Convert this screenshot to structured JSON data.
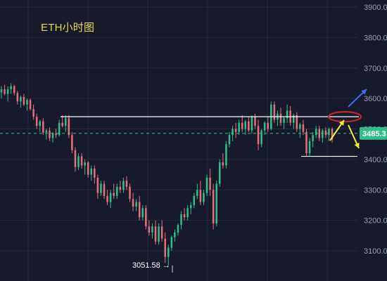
{
  "title": "ETH小时图",
  "low_label": "3051.58 →",
  "current_price_label": "3485.3",
  "colors": {
    "background": "#161a2b",
    "up": "#2fbf8a",
    "down": "#e86f7a",
    "title": "#e6d94a",
    "grid": "#262b40",
    "current_line": "#2fbf8a",
    "resistance": "#ffffff",
    "ellipse": "#c0272d",
    "arrow_up": "#3d6ee8",
    "arrow_down": "#f5ef3a"
  },
  "chart_data": {
    "type": "candlestick",
    "y_axis": {
      "ticks": [
        "3900.0",
        "3800.0",
        "3700.0",
        "3600.0",
        "3500.0",
        "3400.0",
        "3300.0",
        "3200.0",
        "3100.0"
      ],
      "ylim": [
        3030,
        3930
      ],
      "position": "right"
    },
    "grid": true,
    "current_price": 3485.3,
    "low": 3051.58,
    "levels": {
      "resistance": 3540,
      "support": 3410
    },
    "annotations": [
      "resistance line",
      "support line",
      "red ellipse at resistance",
      "blue arrow up",
      "yellow arrows (up and down)"
    ],
    "candles": [
      [
        3620,
        3640,
        3600,
        3630
      ],
      [
        3630,
        3645,
        3610,
        3615
      ],
      [
        3615,
        3640,
        3590,
        3630
      ],
      [
        3630,
        3650,
        3615,
        3640
      ],
      [
        3640,
        3645,
        3610,
        3618
      ],
      [
        3618,
        3625,
        3580,
        3590
      ],
      [
        3590,
        3610,
        3570,
        3605
      ],
      [
        3605,
        3615,
        3575,
        3580
      ],
      [
        3580,
        3600,
        3560,
        3595
      ],
      [
        3595,
        3600,
        3560,
        3565
      ],
      [
        3565,
        3580,
        3530,
        3540
      ],
      [
        3540,
        3550,
        3500,
        3510
      ],
      [
        3510,
        3530,
        3490,
        3525
      ],
      [
        3525,
        3535,
        3480,
        3488
      ],
      [
        3488,
        3500,
        3465,
        3495
      ],
      [
        3495,
        3505,
        3460,
        3470
      ],
      [
        3470,
        3490,
        3455,
        3485
      ],
      [
        3485,
        3500,
        3470,
        3480
      ],
      [
        3480,
        3530,
        3475,
        3520
      ],
      [
        3520,
        3545,
        3505,
        3510
      ],
      [
        3510,
        3545,
        3490,
        3535
      ],
      [
        3535,
        3545,
        3470,
        3480
      ],
      [
        3480,
        3490,
        3420,
        3430
      ],
      [
        3430,
        3440,
        3360,
        3375
      ],
      [
        3375,
        3420,
        3365,
        3410
      ],
      [
        3410,
        3420,
        3370,
        3380
      ],
      [
        3380,
        3400,
        3350,
        3390
      ],
      [
        3390,
        3395,
        3340,
        3350
      ],
      [
        3350,
        3380,
        3330,
        3370
      ],
      [
        3370,
        3380,
        3320,
        3340
      ],
      [
        3340,
        3350,
        3270,
        3290
      ],
      [
        3290,
        3330,
        3280,
        3320
      ],
      [
        3320,
        3330,
        3270,
        3280
      ],
      [
        3280,
        3300,
        3250,
        3260
      ],
      [
        3260,
        3300,
        3240,
        3290
      ],
      [
        3290,
        3320,
        3270,
        3280
      ],
      [
        3280,
        3320,
        3270,
        3310
      ],
      [
        3310,
        3330,
        3290,
        3300
      ],
      [
        3300,
        3340,
        3290,
        3330
      ],
      [
        3330,
        3345,
        3300,
        3310
      ],
      [
        3310,
        3320,
        3260,
        3270
      ],
      [
        3270,
        3290,
        3230,
        3245
      ],
      [
        3245,
        3270,
        3230,
        3260
      ],
      [
        3260,
        3280,
        3200,
        3210
      ],
      [
        3210,
        3250,
        3200,
        3240
      ],
      [
        3240,
        3250,
        3170,
        3180
      ],
      [
        3180,
        3200,
        3150,
        3160
      ],
      [
        3160,
        3190,
        3140,
        3180
      ],
      [
        3180,
        3200,
        3120,
        3130
      ],
      [
        3130,
        3190,
        3120,
        3180
      ],
      [
        3180,
        3200,
        3130,
        3140
      ],
      [
        3140,
        3160,
        3060,
        3080
      ],
      [
        3080,
        3120,
        3052,
        3110
      ],
      [
        3110,
        3150,
        3100,
        3145
      ],
      [
        3145,
        3170,
        3130,
        3160
      ],
      [
        3160,
        3190,
        3150,
        3185
      ],
      [
        3185,
        3230,
        3170,
        3220
      ],
      [
        3220,
        3240,
        3200,
        3210
      ],
      [
        3210,
        3250,
        3200,
        3240
      ],
      [
        3240,
        3260,
        3220,
        3250
      ],
      [
        3250,
        3290,
        3240,
        3280
      ],
      [
        3280,
        3320,
        3270,
        3300
      ],
      [
        3300,
        3330,
        3250,
        3260
      ],
      [
        3260,
        3300,
        3250,
        3290
      ],
      [
        3290,
        3350,
        3280,
        3340
      ],
      [
        3340,
        3370,
        3280,
        3300
      ],
      [
        3300,
        3320,
        3170,
        3190
      ],
      [
        3190,
        3330,
        3180,
        3320
      ],
      [
        3320,
        3400,
        3310,
        3390
      ],
      [
        3390,
        3420,
        3370,
        3380
      ],
      [
        3380,
        3460,
        3370,
        3450
      ],
      [
        3450,
        3490,
        3440,
        3480
      ],
      [
        3480,
        3510,
        3460,
        3500
      ],
      [
        3500,
        3520,
        3470,
        3490
      ],
      [
        3490,
        3530,
        3480,
        3520
      ],
      [
        3520,
        3545,
        3490,
        3500
      ],
      [
        3500,
        3530,
        3480,
        3525
      ],
      [
        3525,
        3540,
        3490,
        3495
      ],
      [
        3495,
        3545,
        3485,
        3540
      ],
      [
        3540,
        3550,
        3500,
        3510
      ],
      [
        3510,
        3530,
        3430,
        3450
      ],
      [
        3450,
        3500,
        3440,
        3495
      ],
      [
        3495,
        3525,
        3480,
        3520
      ],
      [
        3520,
        3540,
        3490,
        3500
      ],
      [
        3500,
        3590,
        3495,
        3580
      ],
      [
        3580,
        3590,
        3520,
        3530
      ],
      [
        3530,
        3560,
        3510,
        3550
      ],
      [
        3550,
        3570,
        3510,
        3520
      ],
      [
        3520,
        3540,
        3500,
        3535
      ],
      [
        3535,
        3580,
        3520,
        3560
      ],
      [
        3560,
        3575,
        3510,
        3520
      ],
      [
        3520,
        3550,
        3500,
        3545
      ],
      [
        3545,
        3555,
        3490,
        3500
      ],
      [
        3500,
        3520,
        3470,
        3515
      ],
      [
        3515,
        3530,
        3480,
        3490
      ],
      [
        3490,
        3500,
        3410,
        3420
      ],
      [
        3420,
        3470,
        3410,
        3460
      ],
      [
        3460,
        3490,
        3440,
        3480
      ],
      [
        3480,
        3510,
        3470,
        3500
      ],
      [
        3500,
        3510,
        3460,
        3470
      ],
      [
        3470,
        3500,
        3455,
        3495
      ],
      [
        3495,
        3505,
        3470,
        3480
      ],
      [
        3480,
        3505,
        3460,
        3500
      ],
      [
        3500,
        3505,
        3455,
        3465
      ]
    ]
  }
}
